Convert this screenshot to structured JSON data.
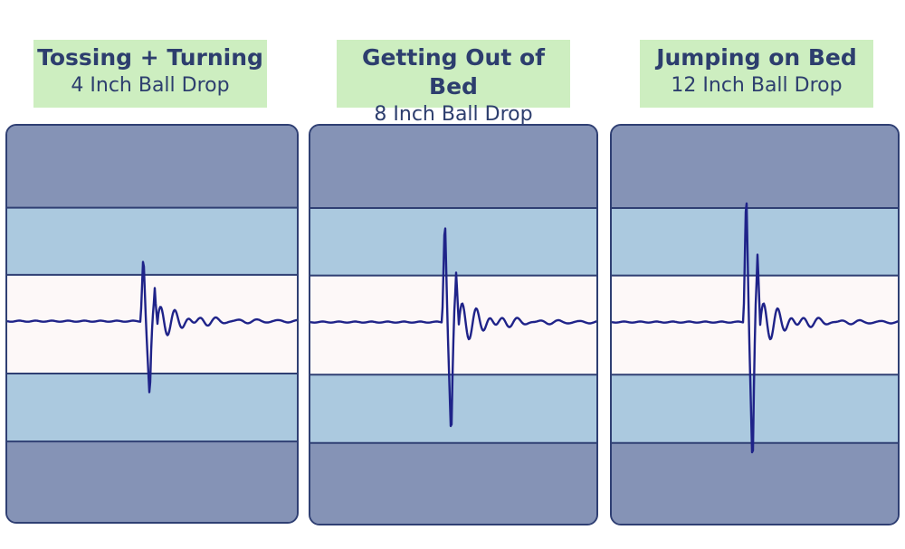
{
  "colors": {
    "outer_band": "#8593b6",
    "middle_band": "#abc9df",
    "center_band": "#fdf8f8",
    "line": "#1f2389",
    "label_bg": "#cdeec0",
    "text": "#2d3e6e"
  },
  "chart_data": [
    {
      "type": "line",
      "title": "Tossing + Turning",
      "subtitle": "4 Inch Ball Drop",
      "impact_strength": 1.0
    },
    {
      "type": "line",
      "title": "Getting Out of Bed",
      "subtitle": "8 Inch Ball Drop",
      "impact_strength": 1.55
    },
    {
      "type": "line",
      "title": "Jumping on Bed",
      "subtitle": "12 Inch Ball Drop",
      "impact_strength": 1.95
    }
  ]
}
